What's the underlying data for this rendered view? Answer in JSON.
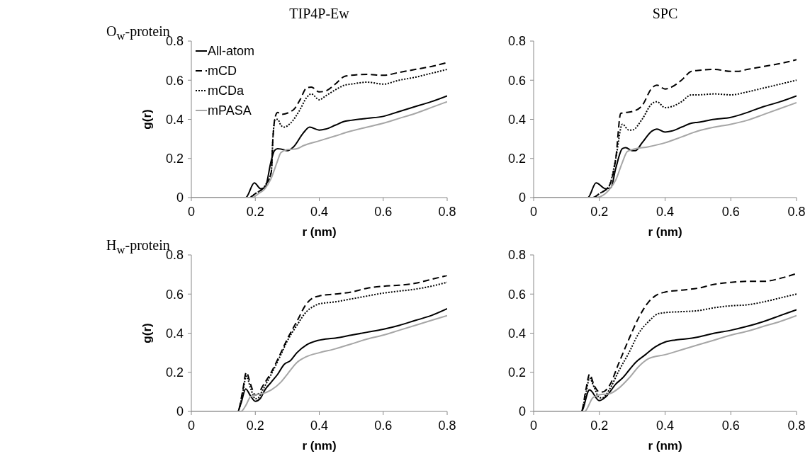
{
  "chart_data": [
    {
      "type": "line",
      "title": "TIP4P-Ew",
      "annotations": [
        "O$_{w}$-protein"
      ],
      "xlabel": "r (nm)",
      "ylabel": "g(r)",
      "xlim": [
        0,
        0.8
      ],
      "xticks": [
        0,
        0.2,
        0.4,
        0.6,
        0.8
      ],
      "ylim": [
        0,
        0.8
      ],
      "yticks": [
        0,
        0.2,
        0.4,
        0.6,
        0.8
      ],
      "legend": "top left",
      "series": [
        {
          "name": "All-atom",
          "color": "#000000",
          "line_style": "solid",
          "x": [
            0,
            0.17,
            0.197,
            0.217,
            0.23,
            0.25,
            0.26,
            0.27,
            0.28,
            0.3,
            0.32,
            0.35,
            0.37,
            0.4,
            0.42,
            0.45,
            0.48,
            0.5,
            0.55,
            0.6,
            0.65,
            0.7,
            0.75,
            0.8
          ],
          "values": [
            0,
            0,
            0.075,
            0.045,
            0.05,
            0.19,
            0.24,
            0.25,
            0.248,
            0.24,
            0.26,
            0.33,
            0.36,
            0.345,
            0.35,
            0.37,
            0.39,
            0.395,
            0.405,
            0.415,
            0.44,
            0.465,
            0.49,
            0.52
          ]
        },
        {
          "name": "mCD",
          "color": "#000000",
          "line_style": "dashed",
          "x": [
            0,
            0.18,
            0.2,
            0.23,
            0.25,
            0.255,
            0.262,
            0.27,
            0.28,
            0.32,
            0.34,
            0.36,
            0.375,
            0.4,
            0.42,
            0.45,
            0.48,
            0.5,
            0.55,
            0.6,
            0.65,
            0.7,
            0.75,
            0.8
          ],
          "values": [
            0,
            0,
            0.02,
            0.06,
            0.13,
            0.3,
            0.41,
            0.435,
            0.425,
            0.45,
            0.5,
            0.56,
            0.565,
            0.54,
            0.545,
            0.58,
            0.62,
            0.625,
            0.63,
            0.625,
            0.64,
            0.655,
            0.67,
            0.69
          ]
        },
        {
          "name": "mCDa",
          "color": "#000000",
          "line_style": "dotted",
          "x": [
            0,
            0.18,
            0.2,
            0.23,
            0.25,
            0.255,
            0.262,
            0.27,
            0.28,
            0.29,
            0.31,
            0.34,
            0.36,
            0.375,
            0.4,
            0.42,
            0.45,
            0.48,
            0.5,
            0.55,
            0.6,
            0.65,
            0.7,
            0.75,
            0.8
          ],
          "values": [
            0,
            0,
            0.02,
            0.06,
            0.13,
            0.3,
            0.4,
            0.4,
            0.37,
            0.36,
            0.38,
            0.45,
            0.51,
            0.53,
            0.5,
            0.52,
            0.55,
            0.575,
            0.58,
            0.59,
            0.58,
            0.6,
            0.615,
            0.635,
            0.655
          ]
        },
        {
          "name": "mPASA",
          "color": "#a6a6a6",
          "line_style": "solid",
          "x": [
            0,
            0.19,
            0.21,
            0.23,
            0.25,
            0.27,
            0.28,
            0.3,
            0.33,
            0.35,
            0.4,
            0.45,
            0.5,
            0.55,
            0.6,
            0.65,
            0.7,
            0.75,
            0.8
          ],
          "values": [
            0,
            0,
            0.02,
            0.045,
            0.1,
            0.19,
            0.23,
            0.245,
            0.25,
            0.265,
            0.29,
            0.315,
            0.34,
            0.36,
            0.38,
            0.405,
            0.43,
            0.46,
            0.49
          ]
        }
      ]
    },
    {
      "type": "line",
      "title": "SPC",
      "xlabel": "r (nm)",
      "xlim": [
        0,
        0.8
      ],
      "xticks": [
        0,
        0.2,
        0.4,
        0.6,
        0.8
      ],
      "ylim": [
        0,
        0.8
      ],
      "yticks": [
        0,
        0.2,
        0.4,
        0.6,
        0.8
      ],
      "series": [
        {
          "color": "#000000",
          "line_style": "solid",
          "x": [
            0,
            0.165,
            0.19,
            0.22,
            0.235,
            0.25,
            0.27,
            0.28,
            0.3,
            0.31,
            0.33,
            0.36,
            0.375,
            0.4,
            0.42,
            0.45,
            0.48,
            0.5,
            0.55,
            0.6,
            0.65,
            0.7,
            0.75,
            0.8
          ],
          "values": [
            0,
            0,
            0.075,
            0.045,
            0.05,
            0.15,
            0.25,
            0.255,
            0.24,
            0.24,
            0.28,
            0.34,
            0.35,
            0.335,
            0.34,
            0.36,
            0.38,
            0.385,
            0.4,
            0.41,
            0.435,
            0.465,
            0.49,
            0.52
          ]
        },
        {
          "color": "#000000",
          "line_style": "dashed",
          "x": [
            0,
            0.18,
            0.2,
            0.23,
            0.25,
            0.265,
            0.28,
            0.3,
            0.33,
            0.36,
            0.375,
            0.4,
            0.42,
            0.45,
            0.48,
            0.5,
            0.55,
            0.6,
            0.62,
            0.65,
            0.7,
            0.75,
            0.8
          ],
          "values": [
            0,
            0,
            0.02,
            0.06,
            0.2,
            0.43,
            0.435,
            0.44,
            0.47,
            0.56,
            0.575,
            0.555,
            0.565,
            0.6,
            0.645,
            0.65,
            0.655,
            0.645,
            0.645,
            0.655,
            0.67,
            0.685,
            0.705
          ]
        },
        {
          "color": "#000000",
          "line_style": "dotted",
          "x": [
            0,
            0.18,
            0.2,
            0.23,
            0.25,
            0.27,
            0.29,
            0.3,
            0.33,
            0.36,
            0.375,
            0.4,
            0.42,
            0.45,
            0.48,
            0.5,
            0.55,
            0.6,
            0.65,
            0.7,
            0.75,
            0.8
          ],
          "values": [
            0,
            0,
            0.02,
            0.06,
            0.2,
            0.375,
            0.345,
            0.345,
            0.4,
            0.48,
            0.49,
            0.46,
            0.465,
            0.49,
            0.525,
            0.525,
            0.53,
            0.525,
            0.54,
            0.56,
            0.58,
            0.6
          ]
        },
        {
          "color": "#a6a6a6",
          "line_style": "solid",
          "x": [
            0,
            0.19,
            0.23,
            0.25,
            0.27,
            0.285,
            0.3,
            0.35,
            0.4,
            0.45,
            0.5,
            0.55,
            0.6,
            0.65,
            0.7,
            0.75,
            0.8
          ],
          "values": [
            0,
            0,
            0.04,
            0.09,
            0.18,
            0.235,
            0.245,
            0.26,
            0.28,
            0.31,
            0.34,
            0.36,
            0.375,
            0.395,
            0.425,
            0.455,
            0.485
          ]
        }
      ]
    },
    {
      "type": "line",
      "annotations": [
        "H$_{w}$-protein"
      ],
      "xlabel": "r (nm)",
      "ylabel": "g(r)",
      "xlim": [
        0,
        0.8
      ],
      "xticks": [
        0,
        0.2,
        0.4,
        0.6,
        0.8
      ],
      "ylim": [
        0,
        0.8
      ],
      "yticks": [
        0,
        0.2,
        0.4,
        0.6,
        0.8
      ],
      "series": [
        {
          "color": "#000000",
          "line_style": "solid",
          "x": [
            0,
            0.145,
            0.155,
            0.17,
            0.185,
            0.2,
            0.215,
            0.23,
            0.25,
            0.27,
            0.29,
            0.31,
            0.33,
            0.36,
            0.39,
            0.42,
            0.45,
            0.5,
            0.55,
            0.6,
            0.65,
            0.7,
            0.75,
            0.8
          ],
          "values": [
            0,
            0,
            0.04,
            0.115,
            0.08,
            0.052,
            0.065,
            0.11,
            0.15,
            0.19,
            0.24,
            0.26,
            0.3,
            0.34,
            0.36,
            0.37,
            0.375,
            0.39,
            0.405,
            0.42,
            0.44,
            0.465,
            0.49,
            0.525
          ]
        },
        {
          "color": "#000000",
          "line_style": "dashed",
          "x": [
            0,
            0.145,
            0.16,
            0.172,
            0.185,
            0.2,
            0.21,
            0.22,
            0.25,
            0.28,
            0.3,
            0.33,
            0.36,
            0.38,
            0.4,
            0.45,
            0.5,
            0.55,
            0.6,
            0.65,
            0.7,
            0.75,
            0.8
          ],
          "values": [
            0,
            0,
            0.1,
            0.2,
            0.14,
            0.085,
            0.09,
            0.12,
            0.2,
            0.3,
            0.37,
            0.46,
            0.55,
            0.58,
            0.59,
            0.6,
            0.61,
            0.63,
            0.64,
            0.645,
            0.655,
            0.675,
            0.695
          ]
        },
        {
          "color": "#000000",
          "line_style": "dotted",
          "x": [
            0,
            0.145,
            0.16,
            0.172,
            0.185,
            0.2,
            0.21,
            0.22,
            0.25,
            0.28,
            0.3,
            0.33,
            0.36,
            0.38,
            0.4,
            0.45,
            0.5,
            0.55,
            0.6,
            0.65,
            0.7,
            0.75,
            0.8
          ],
          "values": [
            0,
            0,
            0.09,
            0.18,
            0.12,
            0.065,
            0.07,
            0.1,
            0.19,
            0.29,
            0.36,
            0.44,
            0.51,
            0.535,
            0.55,
            0.56,
            0.575,
            0.59,
            0.605,
            0.615,
            0.625,
            0.64,
            0.66
          ]
        },
        {
          "color": "#a6a6a6",
          "line_style": "solid",
          "x": [
            0,
            0.155,
            0.17,
            0.185,
            0.2,
            0.22,
            0.25,
            0.28,
            0.3,
            0.33,
            0.36,
            0.4,
            0.45,
            0.5,
            0.55,
            0.6,
            0.65,
            0.7,
            0.75,
            0.8
          ],
          "values": [
            0,
            0,
            0.03,
            0.075,
            0.085,
            0.09,
            0.11,
            0.15,
            0.19,
            0.25,
            0.28,
            0.3,
            0.32,
            0.345,
            0.37,
            0.39,
            0.415,
            0.44,
            0.465,
            0.49
          ]
        }
      ]
    },
    {
      "type": "line",
      "xlabel": "r (nm)",
      "xlim": [
        0,
        0.8
      ],
      "xticks": [
        0,
        0.2,
        0.4,
        0.6,
        0.8
      ],
      "ylim": [
        0,
        0.8
      ],
      "yticks": [
        0,
        0.2,
        0.4,
        0.6,
        0.8
      ],
      "series": [
        {
          "color": "#000000",
          "line_style": "solid",
          "x": [
            0,
            0.145,
            0.17,
            0.2,
            0.22,
            0.25,
            0.27,
            0.29,
            0.31,
            0.34,
            0.37,
            0.4,
            0.43,
            0.46,
            0.5,
            0.55,
            0.6,
            0.65,
            0.7,
            0.75,
            0.8
          ],
          "values": [
            0,
            0,
            0.11,
            0.055,
            0.075,
            0.14,
            0.17,
            0.21,
            0.25,
            0.29,
            0.33,
            0.355,
            0.365,
            0.37,
            0.38,
            0.4,
            0.415,
            0.435,
            0.46,
            0.49,
            0.52
          ]
        },
        {
          "color": "#000000",
          "line_style": "dashed",
          "x": [
            0,
            0.145,
            0.16,
            0.17,
            0.185,
            0.2,
            0.21,
            0.23,
            0.26,
            0.29,
            0.32,
            0.35,
            0.38,
            0.4,
            0.45,
            0.5,
            0.55,
            0.6,
            0.65,
            0.7,
            0.75,
            0.8
          ],
          "values": [
            0,
            0,
            0.12,
            0.19,
            0.13,
            0.1,
            0.1,
            0.13,
            0.25,
            0.37,
            0.48,
            0.56,
            0.6,
            0.61,
            0.62,
            0.63,
            0.65,
            0.66,
            0.665,
            0.665,
            0.68,
            0.705
          ]
        },
        {
          "color": "#000000",
          "line_style": "dotted",
          "x": [
            0,
            0.145,
            0.16,
            0.17,
            0.185,
            0.2,
            0.21,
            0.23,
            0.26,
            0.29,
            0.32,
            0.35,
            0.38,
            0.4,
            0.45,
            0.5,
            0.55,
            0.6,
            0.65,
            0.7,
            0.75,
            0.8
          ],
          "values": [
            0,
            0,
            0.1,
            0.17,
            0.12,
            0.07,
            0.07,
            0.11,
            0.21,
            0.3,
            0.4,
            0.46,
            0.5,
            0.505,
            0.51,
            0.515,
            0.53,
            0.54,
            0.545,
            0.56,
            0.58,
            0.6
          ]
        },
        {
          "color": "#a6a6a6",
          "line_style": "solid",
          "x": [
            0,
            0.155,
            0.18,
            0.2,
            0.23,
            0.26,
            0.29,
            0.32,
            0.35,
            0.4,
            0.45,
            0.5,
            0.55,
            0.6,
            0.65,
            0.7,
            0.75,
            0.8
          ],
          "values": [
            0,
            0,
            0.07,
            0.085,
            0.09,
            0.12,
            0.17,
            0.23,
            0.27,
            0.29,
            0.315,
            0.34,
            0.365,
            0.39,
            0.41,
            0.435,
            0.46,
            0.49
          ]
        }
      ]
    }
  ]
}
